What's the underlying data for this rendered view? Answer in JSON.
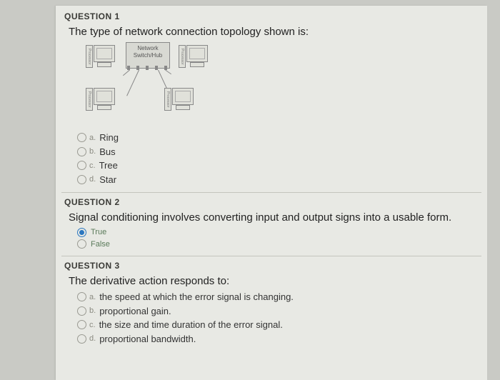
{
  "q1": {
    "title": "QUESTION 1",
    "text": "The type of network connection topology shown is:",
    "diagram": {
      "hub_line1": "Network",
      "hub_line2": "Switch/Hub",
      "processor_label": "Processor"
    },
    "options": [
      {
        "letter": "a.",
        "label": "Ring",
        "selected": false
      },
      {
        "letter": "b.",
        "label": "Bus",
        "selected": false
      },
      {
        "letter": "c.",
        "label": "Tree",
        "selected": false
      },
      {
        "letter": "d.",
        "label": "Star",
        "selected": false
      }
    ]
  },
  "q2": {
    "title": "QUESTION 2",
    "text": "Signal conditioning involves converting input and output signs into a usable form.",
    "options": [
      {
        "letter": "",
        "label": "True",
        "selected": true
      },
      {
        "letter": "",
        "label": "False",
        "selected": false
      }
    ]
  },
  "q3": {
    "title": "QUESTION 3",
    "text": "The derivative action responds to:",
    "options": [
      {
        "letter": "a.",
        "label": "the speed at which the error signal is changing.",
        "selected": false
      },
      {
        "letter": "b.",
        "label": "proportional gain.",
        "selected": false
      },
      {
        "letter": "c.",
        "label": "the size and time duration of the error signal.",
        "selected": false
      },
      {
        "letter": "d.",
        "label": "proportional bandwidth.",
        "selected": false
      }
    ]
  }
}
